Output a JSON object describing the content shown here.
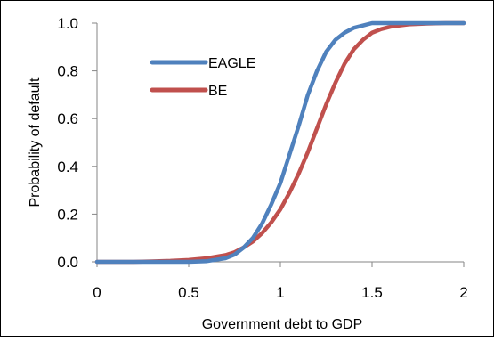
{
  "chart_data": {
    "type": "line",
    "title": "",
    "xlabel": "Government debt to GDP",
    "ylabel": "Probability of default",
    "xlim": [
      0,
      2
    ],
    "ylim": [
      0,
      1
    ],
    "x_ticks": [
      "0",
      "0.5",
      "1",
      "1.5",
      "2"
    ],
    "y_ticks": [
      "0.0",
      "0.2",
      "0.4",
      "0.6",
      "0.8",
      "1.0"
    ],
    "grid": false,
    "legend_position": "top-left inside plot",
    "series": [
      {
        "name": "EAGLE",
        "color": "#4f81bd",
        "x": [
          0.0,
          0.1,
          0.2,
          0.3,
          0.4,
          0.5,
          0.6,
          0.7,
          0.75,
          0.8,
          0.85,
          0.9,
          0.95,
          1.0,
          1.05,
          1.1,
          1.15,
          1.2,
          1.25,
          1.3,
          1.35,
          1.4,
          1.45,
          1.5,
          1.55,
          1.6,
          1.7,
          1.8,
          1.9,
          2.0
        ],
        "values": [
          0.0,
          0.0,
          0.0,
          0.0,
          0.0,
          0.0,
          0.003,
          0.015,
          0.03,
          0.06,
          0.1,
          0.16,
          0.24,
          0.33,
          0.45,
          0.57,
          0.7,
          0.8,
          0.88,
          0.93,
          0.96,
          0.98,
          0.99,
          1.0,
          1.0,
          1.0,
          1.0,
          1.0,
          1.0,
          1.0
        ]
      },
      {
        "name": "BE",
        "color": "#c0504d",
        "x": [
          0.0,
          0.1,
          0.2,
          0.3,
          0.4,
          0.5,
          0.6,
          0.7,
          0.75,
          0.8,
          0.85,
          0.9,
          0.95,
          1.0,
          1.05,
          1.1,
          1.15,
          1.2,
          1.25,
          1.3,
          1.35,
          1.4,
          1.45,
          1.5,
          1.55,
          1.6,
          1.65,
          1.7,
          1.8,
          1.9,
          2.0
        ],
        "values": [
          0.0,
          0.0,
          0.0,
          0.002,
          0.004,
          0.008,
          0.015,
          0.028,
          0.04,
          0.06,
          0.085,
          0.12,
          0.165,
          0.22,
          0.29,
          0.37,
          0.46,
          0.56,
          0.66,
          0.75,
          0.83,
          0.89,
          0.93,
          0.96,
          0.975,
          0.985,
          0.99,
          0.995,
          0.998,
          1.0,
          1.0
        ]
      }
    ]
  }
}
